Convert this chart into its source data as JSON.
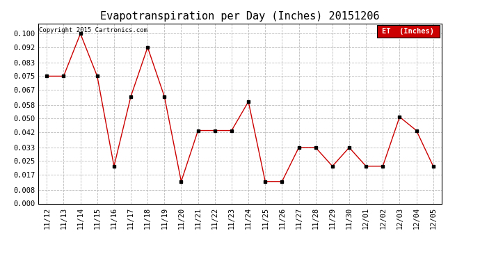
{
  "title": "Evapotranspiration per Day (Inches) 20151206",
  "copyright": "Copyright 2015 Cartronics.com",
  "legend_label": "ET  (Inches)",
  "legend_bg": "#cc0000",
  "legend_text_color": "#ffffff",
  "x_labels": [
    "11/12",
    "11/13",
    "11/14",
    "11/15",
    "11/16",
    "11/17",
    "11/18",
    "11/19",
    "11/20",
    "11/21",
    "11/22",
    "11/23",
    "11/24",
    "11/25",
    "11/26",
    "11/27",
    "11/28",
    "11/29",
    "11/30",
    "12/01",
    "12/02",
    "12/03",
    "12/04",
    "12/05"
  ],
  "y_values": [
    0.075,
    0.075,
    0.1,
    0.075,
    0.022,
    0.063,
    0.092,
    0.063,
    0.013,
    0.043,
    0.043,
    0.043,
    0.06,
    0.013,
    0.013,
    0.033,
    0.033,
    0.022,
    0.033,
    0.022,
    0.022,
    0.051,
    0.043,
    0.022
  ],
  "line_color": "#cc0000",
  "marker_color": "#000000",
  "marker_size": 3,
  "ylim": [
    0.0,
    0.106
  ],
  "yticks": [
    0.0,
    0.008,
    0.017,
    0.025,
    0.033,
    0.042,
    0.05,
    0.058,
    0.067,
    0.075,
    0.083,
    0.092,
    0.1
  ],
  "grid_color": "#bbbbbb",
  "bg_color": "#ffffff",
  "title_fontsize": 11,
  "axis_fontsize": 7.5,
  "copyright_fontsize": 6.5
}
